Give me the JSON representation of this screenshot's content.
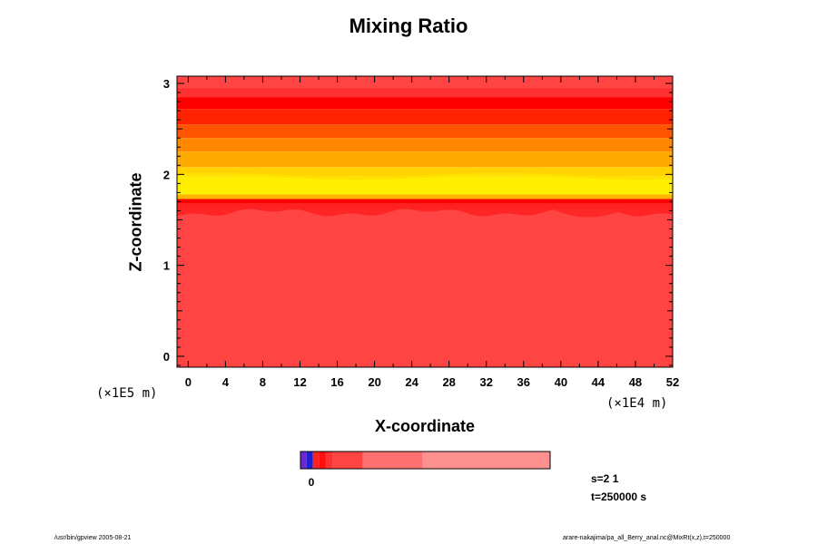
{
  "chart_data": {
    "type": "heatmap",
    "title": "Mixing Ratio",
    "xlabel": "X-coordinate",
    "ylabel": "Z-coordinate",
    "x_scale_note": "(×1E4 m)",
    "y_scale_note": "(×1E5 m)",
    "xlim": [
      -1.2,
      52
    ],
    "ylim": [
      -0.12,
      3.08
    ],
    "x_ticks": [
      0,
      4,
      8,
      12,
      16,
      20,
      24,
      28,
      32,
      36,
      40,
      44,
      48,
      52
    ],
    "y_ticks": [
      0,
      1,
      2,
      3
    ],
    "bands": [
      {
        "z0": -0.12,
        "z1": 1.62,
        "color": "#ff4444"
      },
      {
        "z0": 1.62,
        "z1": 1.68,
        "color": "#ff2a2a"
      },
      {
        "z0": 1.68,
        "z1": 1.73,
        "color": "#ff0000"
      },
      {
        "z0": 1.73,
        "z1": 1.78,
        "color": "#ffb400"
      },
      {
        "z0": 1.78,
        "z1": 1.98,
        "color": "#ffee00"
      },
      {
        "z0": 1.98,
        "z1": 2.08,
        "color": "#ffd200"
      },
      {
        "z0": 2.08,
        "z1": 2.25,
        "color": "#ffaa00"
      },
      {
        "z0": 2.25,
        "z1": 2.4,
        "color": "#ff8800"
      },
      {
        "z0": 2.4,
        "z1": 2.55,
        "color": "#ff5500"
      },
      {
        "z0": 2.55,
        "z1": 2.72,
        "color": "#ff2200"
      },
      {
        "z0": 2.72,
        "z1": 2.85,
        "color": "#ff0000"
      },
      {
        "z0": 2.85,
        "z1": 2.95,
        "color": "#ff3030"
      },
      {
        "z0": 2.95,
        "z1": 3.08,
        "color": "#ff4444"
      }
    ],
    "colorbar": {
      "label": "0",
      "colors": [
        "#6a2ad0",
        "#2020d0",
        "#ff2020",
        "#ff1010",
        "#ff3030",
        "#ff4444",
        "#ff7070",
        "#ff9090"
      ],
      "fractions": [
        0.025,
        0.025,
        0.025,
        0.025,
        0.03,
        0.12,
        0.24,
        0.51
      ]
    },
    "annotations": {
      "s": "s=2 1",
      "t": "t=250000 s"
    }
  },
  "footer": {
    "left": "/usr/bin/gpview 2005-08-21",
    "right": "arare-nakajima/pa_all_Berry_anal.nc@MixRt(x,z),t=250000"
  }
}
